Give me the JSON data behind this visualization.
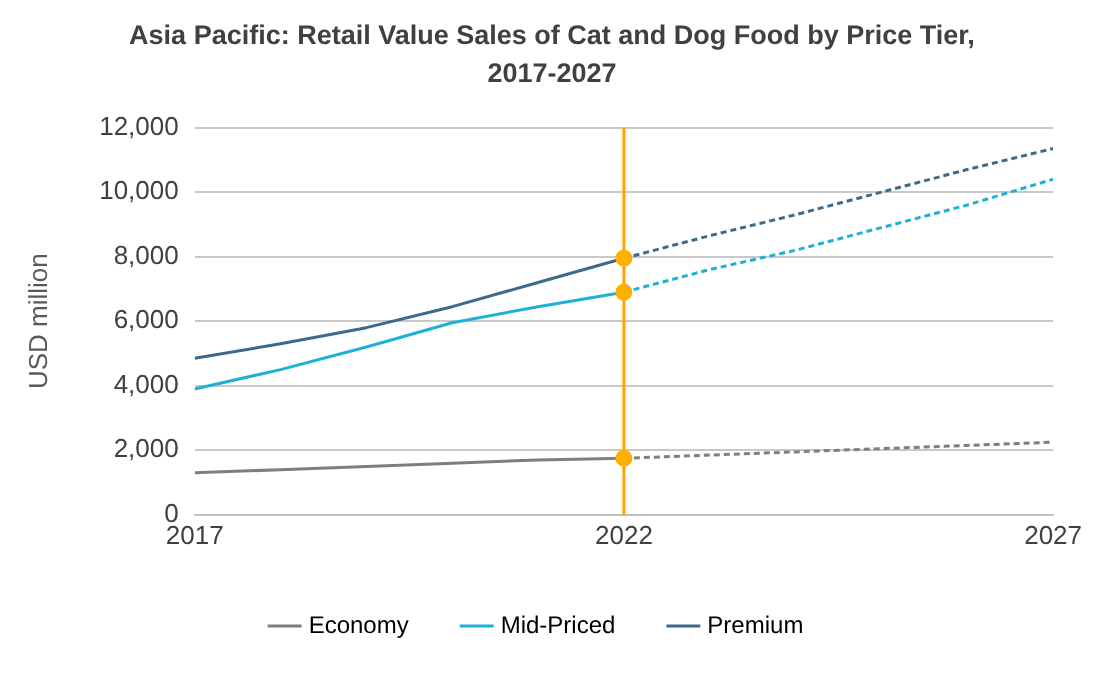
{
  "chart_data": {
    "type": "line",
    "title": "Asia Pacific: Retail Value Sales of Cat and Dog Food by Price Tier, 2017-2027",
    "ylabel": "USD million",
    "xlim": [
      2017,
      2027
    ],
    "xticks": [
      2017,
      2022,
      2027
    ],
    "ylim": [
      0,
      12000
    ],
    "yticks": [
      0,
      {
        "value": 2000,
        "label": "2,000"
      },
      {
        "value": 4000,
        "label": "4,000"
      },
      {
        "value": 6000,
        "label": "6,000"
      },
      {
        "value": 8000,
        "label": "8,000"
      },
      {
        "value": 10000,
        "label": "10,000"
      },
      {
        "value": 12000,
        "label": "12,000"
      }
    ],
    "grid": "y",
    "legend": "bottom",
    "series": [
      {
        "name": "Economy",
        "color": "#7f7f7f",
        "type": "line",
        "line_style": "solid",
        "marker": "none",
        "x": [
          2017,
          2018,
          2019,
          2020,
          2021,
          2022
        ],
        "values": [
          1300,
          1400,
          1500,
          1600,
          1700,
          1750
        ]
      },
      {
        "name": "Mid-Priced",
        "color": "#1fb0d6",
        "type": "line",
        "line_style": "solid",
        "marker": "none",
        "x": [
          2017,
          2018,
          2019,
          2020,
          2021,
          2022
        ],
        "values": [
          3900,
          4500,
          5200,
          5950,
          6450,
          6900
        ]
      },
      {
        "name": "Premium",
        "color": "#3d6a8a",
        "type": "line",
        "line_style": "solid",
        "marker": "none",
        "x": [
          2017,
          2018,
          2019,
          2020,
          2021,
          2022
        ],
        "values": [
          4850,
          5300,
          5800,
          6450,
          7200,
          7950
        ]
      },
      {
        "color": "#7f7f7f",
        "type": "line",
        "line_style": "dashed",
        "marker": "none",
        "x": [
          2022,
          2023,
          2024,
          2025,
          2026,
          2027
        ],
        "values": [
          1750,
          1850,
          1950,
          2050,
          2150,
          2250
        ]
      },
      {
        "color": "#1fb0d6",
        "type": "line",
        "line_style": "dashed",
        "marker": "none",
        "x": [
          2022,
          2023,
          2024,
          2025,
          2026,
          2027
        ],
        "values": [
          6900,
          7600,
          8200,
          8900,
          9600,
          10400
        ]
      },
      {
        "color": "#3d6a8a",
        "type": "line",
        "line_style": "dashed",
        "marker": "none",
        "x": [
          2022,
          2023,
          2024,
          2025,
          2026,
          2027
        ],
        "values": [
          7950,
          8650,
          9300,
          10000,
          10700,
          11350
        ]
      },
      {
        "color": "#ffb000",
        "type": "scatter",
        "marker": "circle",
        "x": [
          2022,
          2022,
          2022
        ],
        "values": [
          1750,
          6900,
          7950
        ]
      }
    ],
    "ref_lines": [
      {
        "axis": "x",
        "value": 2022,
        "color": "#ffa500"
      }
    ]
  }
}
